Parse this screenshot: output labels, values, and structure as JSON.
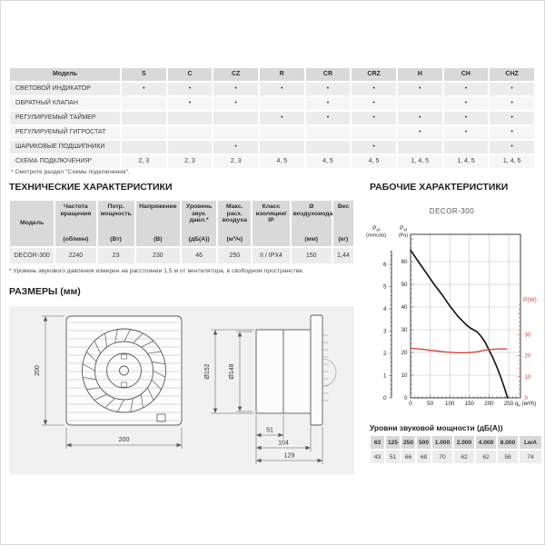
{
  "features": {
    "header": [
      "Модель",
      "S",
      "C",
      "CZ",
      "R",
      "CR",
      "CRZ",
      "H",
      "CH",
      "CHZ"
    ],
    "rows": [
      {
        "label": "СВЕТОВОЙ ИНДИКАТОР",
        "values": [
          "•",
          "•",
          "•",
          "•",
          "•",
          "•",
          "•",
          "•",
          "•"
        ]
      },
      {
        "label": "ОБРАТНЫЙ КЛАПАН",
        "values": [
          "",
          "•",
          "•",
          "",
          "•",
          "•",
          "",
          "•",
          "•"
        ]
      },
      {
        "label": "РЕГУЛИРУЕМЫЙ ТАЙМЕР",
        "values": [
          "",
          "",
          "",
          "•",
          "•",
          "•",
          "•",
          "•",
          "•"
        ]
      },
      {
        "label": "РЕГУЛИРУЕМЫЙ ГИГРОСТАТ",
        "values": [
          "",
          "",
          "",
          "",
          "",
          "",
          "•",
          "•",
          "•"
        ]
      },
      {
        "label": "ШАРИКОВЫЕ ПОДШИПНИКИ",
        "values": [
          "",
          "",
          "•",
          "",
          "",
          "•",
          "",
          "",
          "•"
        ]
      },
      {
        "label": "СХЕМА ПОДКЛЮЧЕНИЯ*",
        "values": [
          "2, 3",
          "2, 3",
          "2, 3",
          "4, 5",
          "4, 5",
          "4, 5",
          "1, 4, 5",
          "1, 4, 5",
          "1, 4, 5"
        ]
      }
    ],
    "footnote": "* Смотрите раздел \"Схемы подключения\"."
  },
  "tech": {
    "title": "ТЕХНИЧЕСКИЕ ХАРАКТЕРИСТИКИ",
    "headers": [
      {
        "label": "Модель",
        "unit": ""
      },
      {
        "label": "Частота вращения",
        "unit": "(об/мин)"
      },
      {
        "label": "Потр. мощность",
        "unit": "(Вт)"
      },
      {
        "label": "Напряжение",
        "unit": "(В)"
      },
      {
        "label": "Уровень звук. давл.*",
        "unit": "(дБ(А))"
      },
      {
        "label": "Макс. расх. воздуха",
        "unit": "(м³/ч)"
      },
      {
        "label": "Класс изоляции/ IP",
        "unit": ""
      },
      {
        "label": "Ø воздуховода",
        "unit": "(мм)"
      },
      {
        "label": "Вес",
        "unit": "(кг)"
      }
    ],
    "row": [
      "DECOR-300",
      "2240",
      "23",
      "230",
      "46",
      "250",
      "II / IPX4",
      "150",
      "1,44"
    ],
    "footnote": "* Уровень звукового давления измерен на расстоянии 1,5 м от вентилятора, в свободном пространстве."
  },
  "dimensions": {
    "title": "РАЗМЕРЫ (мм)",
    "front": {
      "height": "200",
      "width": "200"
    },
    "side": {
      "outer_dia": "Ø152",
      "inner_dia": "Ø148",
      "duct_len": "51",
      "mid_len": "104",
      "total_len": "129"
    }
  },
  "performance": {
    "title": "РАБОЧИЕ ХАРАКТЕРИСТИКИ",
    "chart_title": "DECOR-300"
  },
  "chart_data": {
    "type": "line",
    "title": "DECOR-300",
    "xlabel": "qv (м³/h)",
    "ylabel_left_primary": "Psf (mmcda)",
    "ylabel_left_secondary": "Psf (Pa)",
    "ylabel_right": "P(W)",
    "xlim": [
      0,
      280
    ],
    "ylim_pa": [
      0,
      72
    ],
    "x_ticks": [
      0,
      50,
      100,
      150,
      200,
      250
    ],
    "pa_ticks": [
      0,
      10,
      20,
      30,
      40,
      50,
      60
    ],
    "mmcda_ticks": [
      0,
      1,
      2,
      3,
      4,
      5,
      6
    ],
    "w_ticks": [
      0,
      10,
      20,
      30
    ],
    "grid": true,
    "w_axis_scale_vs_pa": 0.93,
    "series": [
      {
        "name": "static-pressure",
        "unit": "Pa",
        "color": "#1a1a1a",
        "x": [
          0,
          20,
          40,
          60,
          80,
          100,
          120,
          140,
          150,
          160,
          170,
          180,
          190,
          200,
          210,
          220,
          230,
          240,
          247
        ],
        "y": [
          65,
          60,
          55,
          50,
          45.5,
          40.5,
          36,
          32.5,
          31,
          30,
          29,
          27,
          24.5,
          21,
          17.5,
          13.5,
          9,
          4,
          0
        ]
      },
      {
        "name": "power",
        "unit": "W",
        "color": "#d9382e",
        "x": [
          0,
          30,
          60,
          90,
          120,
          150,
          170,
          190,
          210,
          230,
          245
        ],
        "y": [
          23.5,
          23,
          22.3,
          21.7,
          21.3,
          21.4,
          21.8,
          22.6,
          23,
          23.2,
          23.2
        ]
      }
    ]
  },
  "noise": {
    "title": "Уровни звуковой мощности (дБ(А))",
    "headers": [
      "63",
      "125",
      "250",
      "500",
      "1.000",
      "2.000",
      "4.000",
      "8.000",
      "LwA"
    ],
    "values": [
      "43",
      "51",
      "66",
      "68",
      "70",
      "62",
      "62",
      "58",
      "74"
    ]
  }
}
